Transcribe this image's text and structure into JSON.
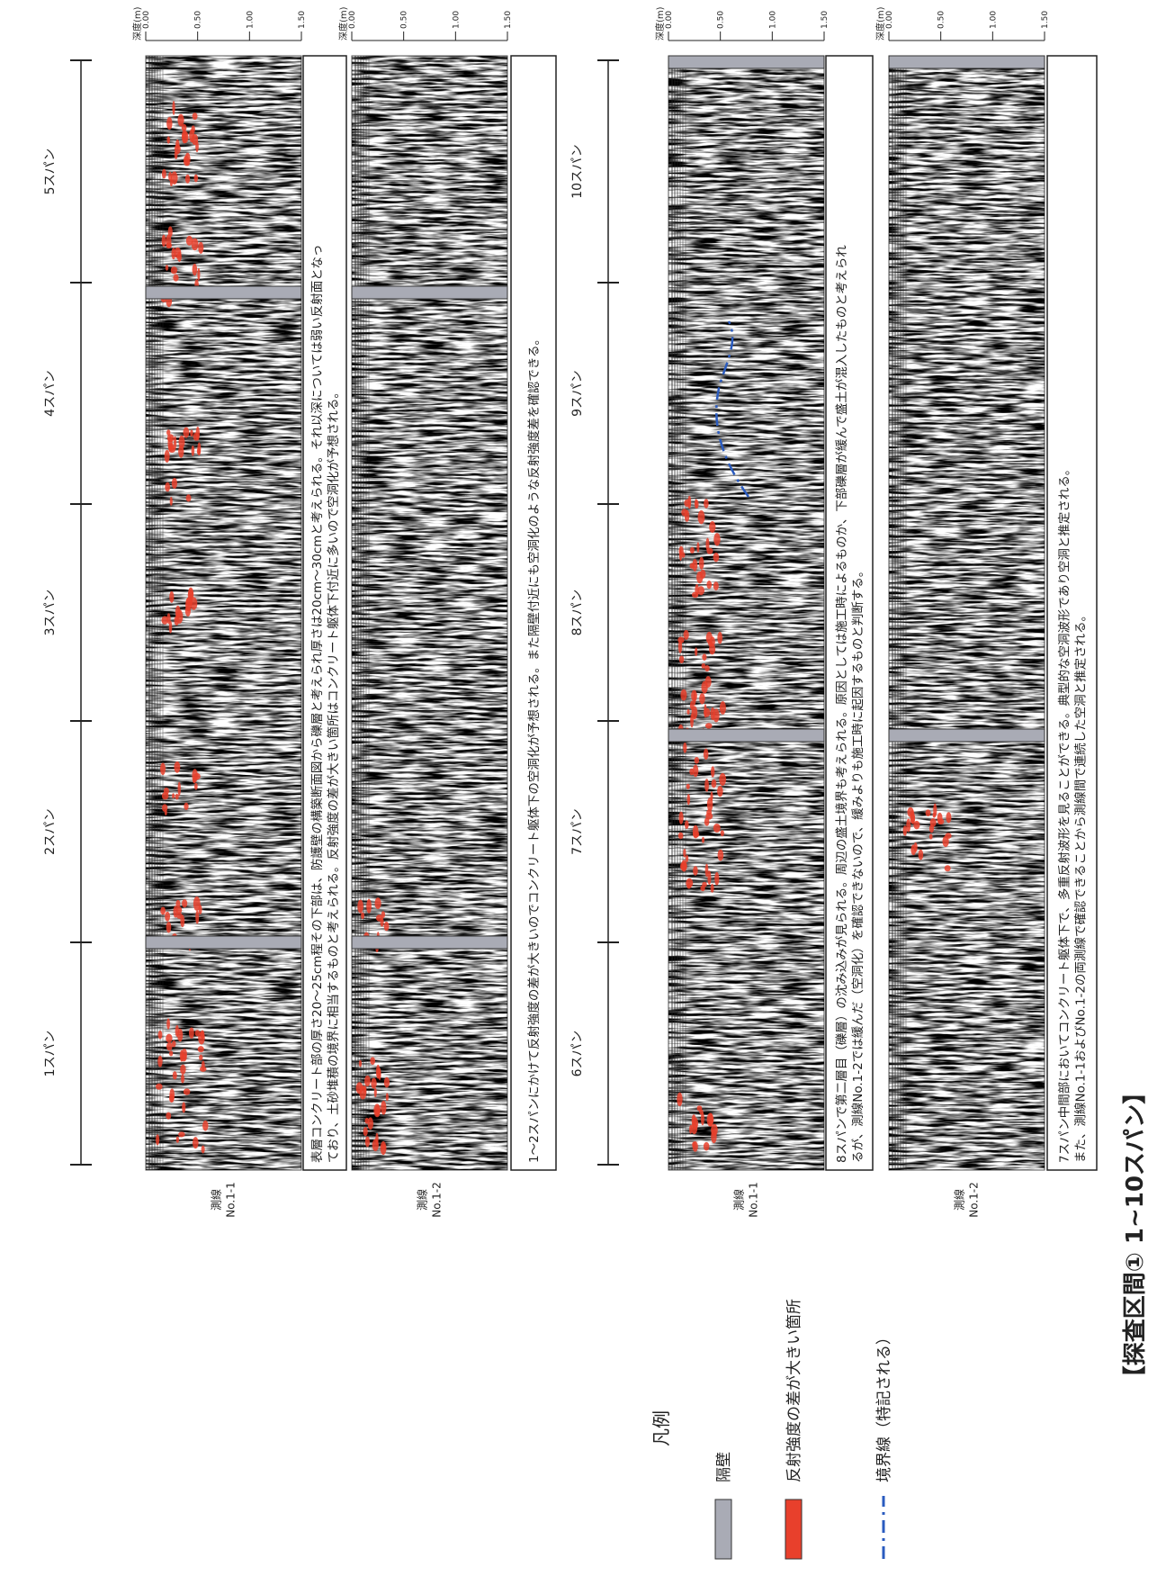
{
  "header": {
    "title": "【探査区間① 1~10スパン】"
  },
  "legend": {
    "title": "凡例",
    "items": [
      "隔壁",
      "反射強度の差が大きい箇所",
      "境界線（特記される）"
    ]
  },
  "depth_axis": {
    "label": "深度(m)",
    "ticks": [
      "0.00",
      "0.50",
      "1.00",
      "1.50"
    ]
  },
  "sections": [
    {
      "spans": [
        "1スパン",
        "2スパン",
        "3スパン",
        "4スパン",
        "5スパン"
      ],
      "lines": [
        {
          "name": "測線",
          "id": "No.1-1"
        },
        {
          "name": "測線",
          "id": "No.1-2"
        }
      ],
      "notes": [
        [
          "表層コンクリート部の厚さ20～25cm程その下部は、防護壁の構築断面図から礫層と考えられ厚さは20cm～30cmと考えられる。それ以深については弱い反射面となっ",
          "ており、土砂堆積の境界に相当するものと考えられる。反射強度の差が大きい箇所はコンクリート躯体下付近に多いので空洞化が予想される。"
        ],
        [
          "1～2スパンにかけて反射強度の差が大きいのでコンクリート躯体下の空洞化が予想される。また隔壁付近にも空洞化のような反射強度差を確認できる。"
        ]
      ]
    },
    {
      "spans": [
        "6スパン",
        "7スパン",
        "8スパン",
        "9スパン",
        "10スパン"
      ],
      "lines": [
        {
          "name": "測線",
          "id": "No.1-1"
        },
        {
          "name": "測線",
          "id": "No.1-2"
        }
      ],
      "notes": [
        [
          "8スパンで第二層目（礫層）の沈み込みが見られる。周辺の盛土境界も考えられる。原因としては施工時によるものか、下部礫層が緩んで盛土が混入したものと考えられ",
          "るが、測線No.1-2では緩んだ（空洞化）を確認できないので、緩みよりも施工時に起因するものと判断する。"
        ],
        [
          "7スパン中間部においてコンクリート躯体下で、多重反射波形を見ることができる。典型的な空洞波形であり空洞と推定される。",
          "また、測線No.1-1およびNo.1-2の両測線で確認できることから測線間で連続した空洞と推定される。"
        ]
      ]
    }
  ]
}
